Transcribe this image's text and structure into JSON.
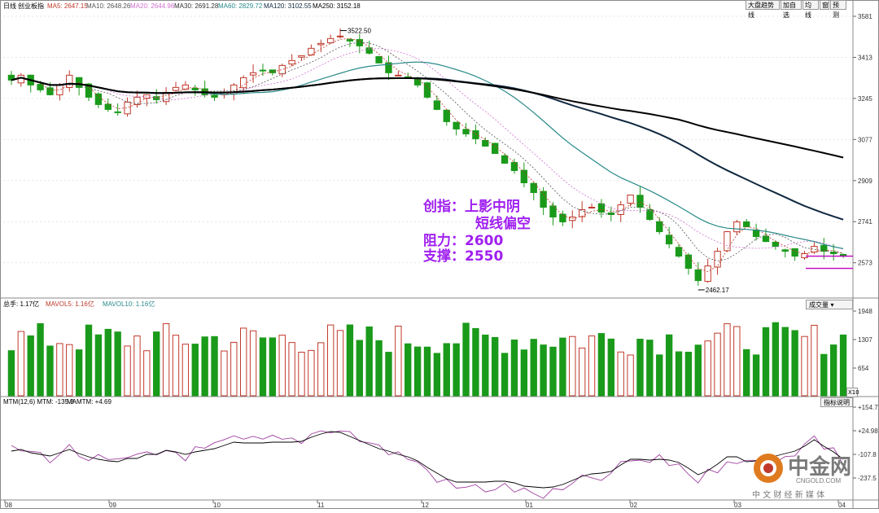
{
  "header": {
    "period": "日线",
    "index_name": "创业板指",
    "ma_items": [
      {
        "label": "MA5: 2647.15",
        "color": "#c0392b"
      },
      {
        "label": "MA10: 2648.26",
        "color": "#555555"
      },
      {
        "label": "MA20: 2644.96",
        "color": "#d070d0"
      },
      {
        "label": "MA30: 2691.28",
        "color": "#333333"
      },
      {
        "label": "MA60: 2829.72",
        "color": "#2a8a8a"
      },
      {
        "label": "MA120: 3102.55",
        "color": "#102840"
      },
      {
        "label": "MA250: 3152.18",
        "color": "#000000"
      }
    ],
    "buttons": [
      "大盘趋势线",
      "加自选",
      "均线",
      "窗",
      "预测"
    ]
  },
  "annotation": {
    "line1": "创指：上影中阴",
    "line2": "短线偏空",
    "line3": "阻力：2600",
    "line4": "支撑：2550"
  },
  "price_panel": {
    "y_ticks": [
      "3581",
      "3413",
      "3245",
      "3077",
      "2909",
      "2741",
      "2573"
    ],
    "high_label": "3522.50",
    "low_label": "2462.17"
  },
  "volume_panel": {
    "title": "总手: 1.17亿",
    "mavol5": "MAVOL5: 1.16亿",
    "mavol10": "MAVOL10: 1.16亿",
    "y_ticks": [
      "1948",
      "1307",
      "654"
    ],
    "unit": "X10",
    "button": "成交量"
  },
  "mtm_panel": {
    "title": "MTM(12,6) MTM: -135.3",
    "mamtm": "MAMTM: +4.69",
    "y_ticks": [
      "+154.7",
      "+24.98",
      "-107.8",
      "-237.5"
    ],
    "button": "指标说明"
  },
  "x_axis": {
    "labels": [
      "08",
      "09",
      "10",
      "11",
      "12",
      "01",
      "02",
      "03",
      "04"
    ]
  },
  "watermark": {
    "brand": "中金网",
    "domain": "CNGOLD.COM",
    "tagline": "中 文 财 经 新 媒 体"
  },
  "colors": {
    "up": "#c0392b",
    "down": "#1a9a1a",
    "overlay_text": "#a020f0",
    "support_line": "#c000c0"
  },
  "chart_data": {
    "type": "candlestick",
    "title": "创业板指 日线",
    "ylim": [
      2462,
      3581
    ],
    "series": [
      {
        "name": "MA5",
        "last": 2647.15
      },
      {
        "name": "MA10",
        "last": 2648.26
      },
      {
        "name": "MA20",
        "last": 2644.96
      },
      {
        "name": "MA30",
        "last": 2691.28
      },
      {
        "name": "MA60",
        "last": 2829.72
      },
      {
        "name": "MA120",
        "last": 3102.55
      },
      {
        "name": "MA250",
        "last": 3152.18
      }
    ],
    "close_path": [
      3320,
      3340,
      3300,
      3280,
      3260,
      3300,
      3340,
      3290,
      3250,
      3220,
      3200,
      3190,
      3230,
      3250,
      3260,
      3240,
      3270,
      3290,
      3300,
      3280,
      3260,
      3250,
      3270,
      3300,
      3330,
      3350,
      3360,
      3350,
      3380,
      3400,
      3420,
      3450,
      3470,
      3490,
      3500,
      3480,
      3460,
      3430,
      3390,
      3350,
      3340,
      3330,
      3300,
      3250,
      3200,
      3150,
      3120,
      3100,
      3080,
      3050,
      3020,
      2980,
      2950,
      2900,
      2860,
      2800,
      2760,
      2740,
      2760,
      2790,
      2800,
      2780,
      2770,
      2810,
      2850,
      2800,
      2750,
      2700,
      2650,
      2600,
      2550,
      2500,
      2560,
      2620,
      2700,
      2740,
      2720,
      2680,
      2660,
      2640,
      2620,
      2600,
      2610,
      2640,
      2620,
      2610,
      2600
    ],
    "key_levels": {
      "high": 3522.5,
      "low": 2462.17,
      "resistance": 2600,
      "support": 2550
    },
    "volume": {
      "mavol5": 1.16,
      "mavol10": 1.16,
      "last": 1.17,
      "unit": "亿"
    },
    "mtm": {
      "mtm": -135.3,
      "mamtm": 4.69
    }
  }
}
